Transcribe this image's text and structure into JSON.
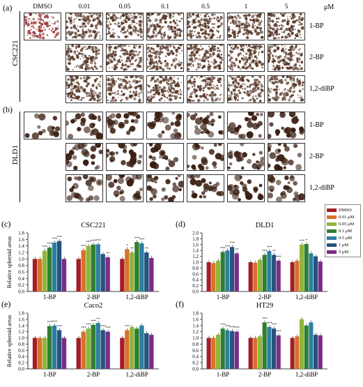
{
  "panels_top": {
    "a_label": "(a)",
    "b_label": "(b)",
    "col_headers": [
      "DMSO",
      "0.01",
      "0.05",
      "0.1",
      "0.5",
      "1",
      "5"
    ],
    "unit": "μM",
    "row_labels": [
      "1-BP",
      "2-BP",
      "1,2-diBP"
    ],
    "a_side": "CSC221",
    "b_side": "DLD1",
    "a_color": "#9a3b3b",
    "b_color": "#3a1f12"
  },
  "legend": {
    "items": [
      {
        "label": "DMSO",
        "color": "#a31e25"
      },
      {
        "label": "0.01 μM",
        "color": "#d9712b"
      },
      {
        "label": "0.05 μM",
        "color": "#8fb53a"
      },
      {
        "label": "0.1 μM",
        "color": "#2f7f2f"
      },
      {
        "label": "0.5 μM",
        "color": "#2e7ea0"
      },
      {
        "label": "1 μM",
        "color": "#24537f"
      },
      {
        "label": "5 μM",
        "color": "#7d2b86"
      }
    ]
  },
  "chart_data": [
    {
      "type": "bar",
      "panel": "(c)",
      "title": "CSC221",
      "ylabel": "Relative spheroid areas",
      "ylim": [
        0,
        1.8
      ],
      "categories": [
        "1-BP",
        "2-BP",
        "1,2-diBP"
      ],
      "series": [
        {
          "name": "DMSO",
          "values": [
            1.0,
            1.0,
            1.0
          ]
        },
        {
          "name": "0.01 μM",
          "values": [
            1.0,
            1.27,
            1.3
          ]
        },
        {
          "name": "0.05 μM",
          "values": [
            1.25,
            1.4,
            1.2
          ]
        },
        {
          "name": "0.1 μM",
          "values": [
            1.35,
            1.44,
            1.52
          ]
        },
        {
          "name": "0.5 μM",
          "values": [
            1.5,
            1.45,
            1.48
          ]
        },
        {
          "name": "1 μM",
          "values": [
            1.55,
            1.15,
            1.2
          ]
        },
        {
          "name": "5 μM",
          "values": [
            1.0,
            1.05,
            1.03
          ]
        }
      ],
      "annotations": [
        "***",
        "***",
        "***",
        "***",
        "***",
        "***",
        "***",
        "***",
        "**",
        "*",
        "**",
        "***",
        "***",
        "**"
      ]
    },
    {
      "type": "bar",
      "panel": "(d)",
      "title": "DLD1",
      "ylabel": "",
      "ylim": [
        0,
        2.0
      ],
      "categories": [
        "1-BP",
        "2-BP",
        "1,2-diBP"
      ],
      "series": [
        {
          "name": "DMSO",
          "values": [
            1.0,
            1.0,
            1.0
          ]
        },
        {
          "name": "0.01 μM",
          "values": [
            0.97,
            0.98,
            1.05
          ]
        },
        {
          "name": "0.05 μM",
          "values": [
            1.05,
            1.08,
            1.6
          ]
        },
        {
          "name": "0.1 μM",
          "values": [
            1.35,
            1.25,
            1.62
          ]
        },
        {
          "name": "0.5 μM",
          "values": [
            1.4,
            1.38,
            1.3
          ]
        },
        {
          "name": "1 μM",
          "values": [
            1.52,
            1.25,
            1.2
          ]
        },
        {
          "name": "5 μM",
          "values": [
            1.3,
            1.05,
            1.02
          ]
        }
      ],
      "annotations": [
        "***",
        "***",
        "***",
        "**",
        "***",
        "***",
        "**",
        "***",
        "***",
        "*"
      ]
    },
    {
      "type": "bar",
      "panel": "(e)",
      "title": "Caco2",
      "ylabel": "Relative spheroid areas",
      "ylim": [
        0,
        1.8
      ],
      "categories": [
        "1-BP",
        "2-BP",
        "1,2-diBP"
      ],
      "series": [
        {
          "name": "DMSO",
          "values": [
            1.0,
            1.0,
            1.0
          ]
        },
        {
          "name": "0.01 μM",
          "values": [
            1.0,
            1.2,
            1.25
          ]
        },
        {
          "name": "0.05 μM",
          "values": [
            1.0,
            1.3,
            1.35
          ]
        },
        {
          "name": "0.1 μM",
          "values": [
            1.38,
            1.42,
            1.3
          ]
        },
        {
          "name": "0.5 μM",
          "values": [
            1.4,
            1.48,
            1.4
          ]
        },
        {
          "name": "1 μM",
          "values": [
            1.25,
            1.25,
            1.15
          ]
        },
        {
          "name": "5 μM",
          "values": [
            1.0,
            1.2,
            1.1
          ]
        }
      ],
      "annotations": [
        "***",
        "***",
        "***",
        "***",
        "***",
        "***",
        "**",
        "***",
        "***",
        "***"
      ]
    },
    {
      "type": "bar",
      "panel": "(f)",
      "title": "HT29",
      "ylabel": "",
      "ylim": [
        0,
        1.8
      ],
      "categories": [
        "1-BP",
        "2-BP",
        "1,2-diBP"
      ],
      "series": [
        {
          "name": "DMSO",
          "values": [
            1.0,
            1.0,
            1.0
          ]
        },
        {
          "name": "0.01 μM",
          "values": [
            1.0,
            1.0,
            1.05
          ]
        },
        {
          "name": "0.05 μM",
          "values": [
            1.1,
            1.05,
            1.6
          ]
        },
        {
          "name": "0.1 μM",
          "values": [
            1.3,
            1.5,
            1.4
          ]
        },
        {
          "name": "0.5 μM",
          "values": [
            1.25,
            1.35,
            1.5
          ]
        },
        {
          "name": "1 μM",
          "values": [
            1.22,
            1.3,
            1.1
          ]
        },
        {
          "name": "5 μM",
          "values": [
            1.2,
            1.08,
            1.08
          ]
        }
      ],
      "annotations": [
        "***",
        "***",
        "***",
        "***",
        "***",
        "***",
        "***",
        "***"
      ]
    }
  ]
}
